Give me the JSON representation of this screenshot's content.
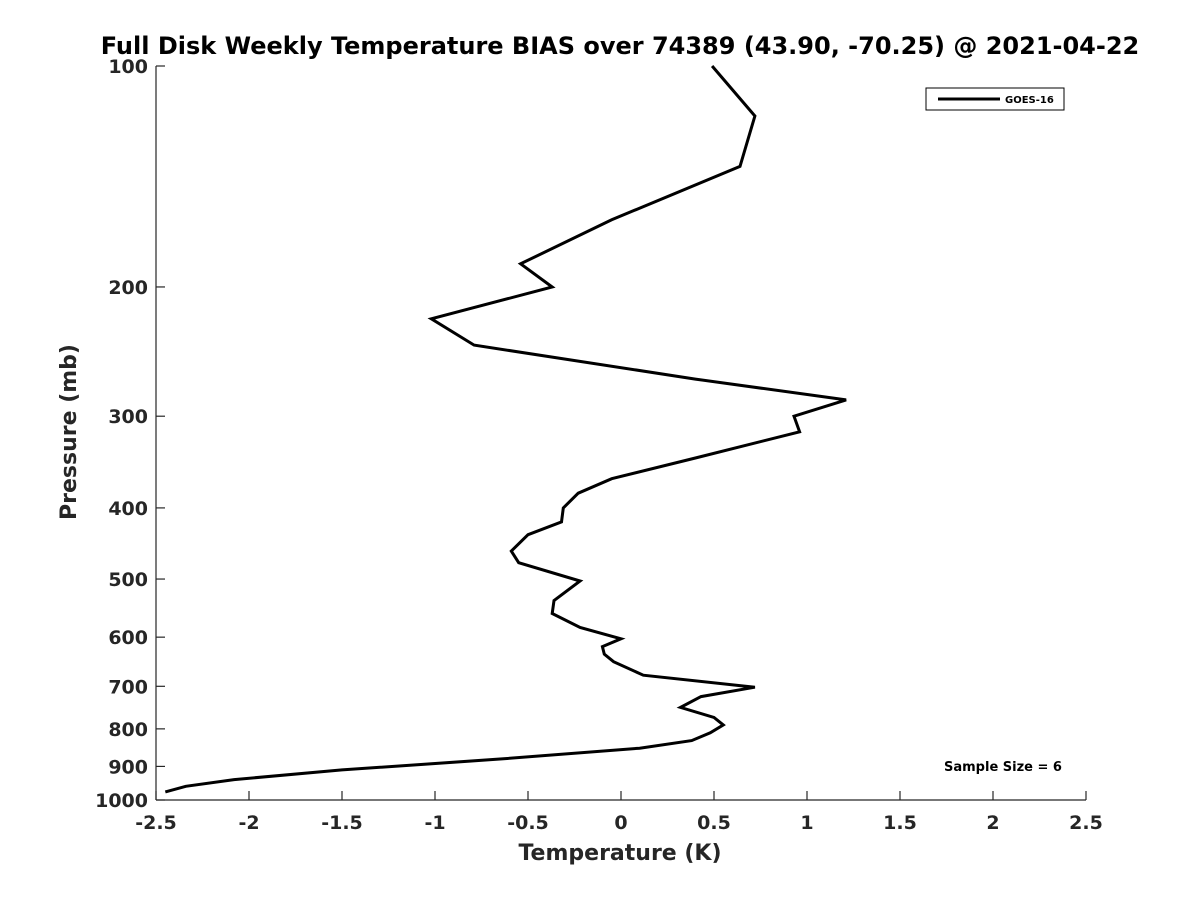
{
  "chart_data": {
    "type": "line",
    "title": "Full Disk Weekly Temperature BIAS over 74389 (43.90, -70.25) @ 2021-04-22",
    "xlabel": "Temperature (K)",
    "ylabel": "Pressure (mb)",
    "xlim": [
      -2.5,
      2.5
    ],
    "ylim": [
      100,
      1000
    ],
    "y_scale": "log",
    "y_reversed": true,
    "x_ticks": [
      "-2.5",
      "-2",
      "-1.5",
      "-1",
      "-0.5",
      "0",
      "0.5",
      "1",
      "1.5",
      "2",
      "2.5"
    ],
    "x_tick_values": [
      -2.5,
      -2,
      -1.5,
      -1,
      -0.5,
      0,
      0.5,
      1,
      1.5,
      2,
      2.5
    ],
    "y_ticks": [
      "100",
      "200",
      "300",
      "400",
      "500",
      "600",
      "700",
      "800",
      "900",
      "1000"
    ],
    "y_tick_values": [
      100,
      200,
      300,
      400,
      500,
      600,
      700,
      800,
      900,
      1000
    ],
    "grid": false,
    "legend_position": "top-right",
    "series": [
      {
        "name": "GOES-16",
        "color": "#000000",
        "points": [
          {
            "x": 0.49,
            "p": 100
          },
          {
            "x": 0.72,
            "p": 117
          },
          {
            "x": 0.64,
            "p": 137
          },
          {
            "x": -0.05,
            "p": 162
          },
          {
            "x": -0.54,
            "p": 186
          },
          {
            "x": -0.37,
            "p": 200
          },
          {
            "x": -1.02,
            "p": 221
          },
          {
            "x": -0.79,
            "p": 240
          },
          {
            "x": 0.4,
            "p": 267
          },
          {
            "x": 1.21,
            "p": 285
          },
          {
            "x": 0.93,
            "p": 300
          },
          {
            "x": 0.96,
            "p": 315
          },
          {
            "x": 0.4,
            "p": 342
          },
          {
            "x": -0.05,
            "p": 365
          },
          {
            "x": -0.23,
            "p": 382
          },
          {
            "x": -0.31,
            "p": 400
          },
          {
            "x": -0.32,
            "p": 418
          },
          {
            "x": -0.5,
            "p": 435
          },
          {
            "x": -0.59,
            "p": 458
          },
          {
            "x": -0.55,
            "p": 475
          },
          {
            "x": -0.22,
            "p": 503
          },
          {
            "x": -0.36,
            "p": 535
          },
          {
            "x": -0.37,
            "p": 557
          },
          {
            "x": -0.22,
            "p": 582
          },
          {
            "x": 0.0,
            "p": 603
          },
          {
            "x": -0.1,
            "p": 618
          },
          {
            "x": -0.09,
            "p": 633
          },
          {
            "x": -0.04,
            "p": 648
          },
          {
            "x": 0.12,
            "p": 676
          },
          {
            "x": 0.72,
            "p": 702
          },
          {
            "x": 0.43,
            "p": 723
          },
          {
            "x": 0.32,
            "p": 748
          },
          {
            "x": 0.5,
            "p": 772
          },
          {
            "x": 0.55,
            "p": 790
          },
          {
            "x": 0.48,
            "p": 810
          },
          {
            "x": 0.38,
            "p": 830
          },
          {
            "x": 0.1,
            "p": 850
          },
          {
            "x": -0.67,
            "p": 880
          },
          {
            "x": -1.5,
            "p": 910
          },
          {
            "x": -2.08,
            "p": 938
          },
          {
            "x": -2.34,
            "p": 958
          },
          {
            "x": -2.45,
            "p": 975
          }
        ]
      }
    ],
    "annotations": [
      {
        "text": "Sample Size = 6",
        "position": "bottom-right"
      }
    ]
  }
}
